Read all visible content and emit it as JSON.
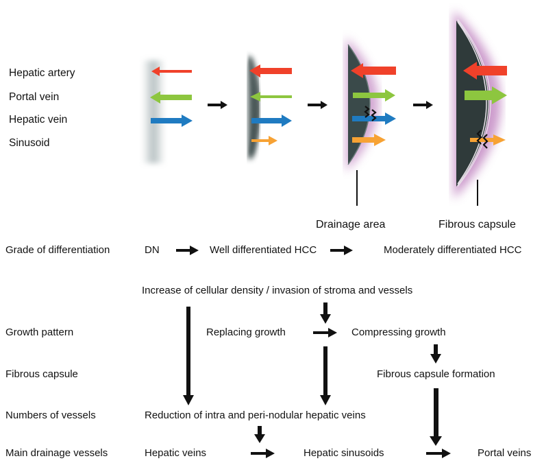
{
  "legend": {
    "hepatic_artery": "Hepatic artery",
    "portal_vein": "Portal vein",
    "hepatic_vein": "Hepatic vein",
    "sinusoid": "Sinusoid"
  },
  "stage_labels": {
    "drainage_area": "Drainage area",
    "fibrous_capsule": "Fibrous capsule"
  },
  "rows": {
    "grade": "Grade of differentiation",
    "growth": "Growth pattern",
    "capsule": "Fibrous capsule",
    "numbers": "Numbers of vessels",
    "drainage": "Main drainage vessels"
  },
  "flow": {
    "dn": "DN",
    "well": "Well differentiated HCC",
    "moderate": "Moderately differentiated HCC",
    "increase": "Increase of cellular density / invasion of stroma and vessels",
    "replacing": "Replacing growth",
    "compressing": "Compressing growth",
    "capsule_formation": "Fibrous capsule formation",
    "reduction": "Reduction of intra and peri-nodular hepatic veins",
    "hepatic_veins": "Hepatic veins",
    "hepatic_sinusoids": "Hepatic sinusoids",
    "portal_veins": "Portal veins"
  },
  "colors": {
    "artery": "#f0412a",
    "portal": "#8dc63f",
    "vein": "#1f7bc1",
    "sinusoid": "#f7a234",
    "nodule": "#3a4a4a",
    "halo": "#c48bc4"
  }
}
